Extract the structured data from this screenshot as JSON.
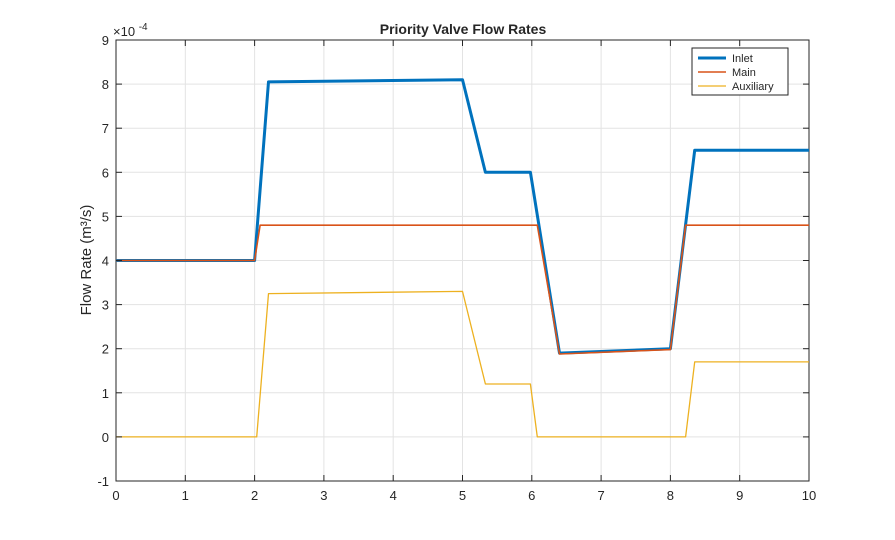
{
  "chart_data": {
    "type": "line",
    "title": "Priority Valve Flow Rates",
    "xlabel": "",
    "ylabel": "Flow  Rate  (m³/s)",
    "y_exponent_label": "×10",
    "y_exponent": "-4",
    "xlim": [
      0,
      10
    ],
    "ylim": [
      -1,
      9
    ],
    "x_ticks": [
      0,
      1,
      2,
      3,
      4,
      5,
      6,
      7,
      8,
      9,
      10
    ],
    "y_ticks": [
      -1,
      0,
      1,
      2,
      3,
      4,
      5,
      6,
      7,
      8,
      9
    ],
    "grid": true,
    "legend_position": "top-right",
    "series": [
      {
        "name": "Inlet",
        "color": "#0072BD",
        "x": [
          0,
          2,
          2.2,
          5,
          5.33,
          5.98,
          6.4,
          8,
          8.35,
          10
        ],
        "y": [
          4.0,
          4.0,
          8.05,
          8.1,
          6.0,
          6.0,
          1.9,
          2.0,
          6.5,
          6.5
        ]
      },
      {
        "name": "Main",
        "color": "#D95319",
        "x": [
          0,
          2,
          2.08,
          5,
          6.0,
          6.08,
          6.4,
          8,
          8.22,
          10
        ],
        "y": [
          4.0,
          4.0,
          4.8,
          4.8,
          4.8,
          4.8,
          1.88,
          1.98,
          4.8,
          4.8
        ]
      },
      {
        "name": "Auxiliary",
        "color": "#EDB120",
        "x": [
          0,
          2.03,
          2.2,
          5,
          5.33,
          5.98,
          6.08,
          8.22,
          8.35,
          10
        ],
        "y": [
          0,
          0,
          3.25,
          3.3,
          1.2,
          1.2,
          0,
          0,
          1.7,
          1.7
        ]
      }
    ]
  }
}
